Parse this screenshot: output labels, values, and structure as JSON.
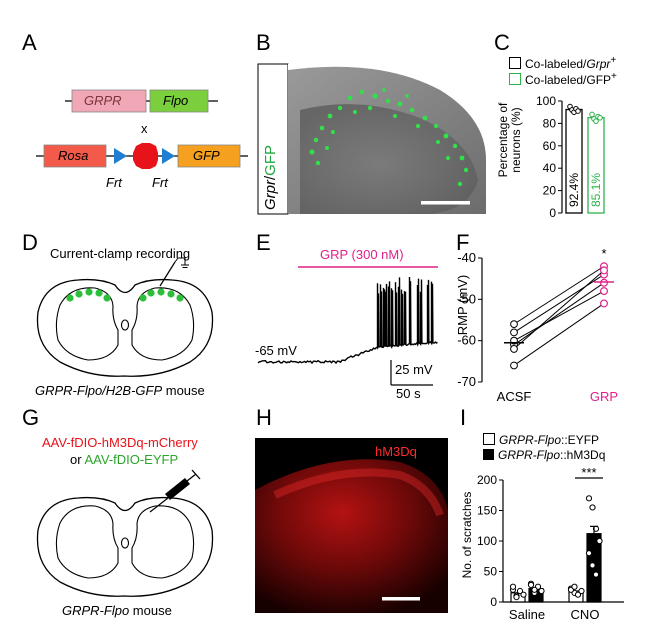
{
  "panels": {
    "A": {
      "label": "A",
      "box1a": "GRPR",
      "box1b": "Flpo",
      "cross": "x",
      "box2a": "Rosa",
      "box2b": "GFP",
      "frt1": "Frt",
      "frt2": "Frt",
      "colors": {
        "grpr_box": "#f2a7b6",
        "flpo_box": "#7ccf3c",
        "rosa_box": "#f45a4a",
        "gfp_box": "#f6a020",
        "frt": "#1f7fd0",
        "stop": "#e8121a"
      }
    },
    "B": {
      "label": "B",
      "side_label_a": "Grpr",
      "side_label_sep": "/",
      "side_label_b": "GFP",
      "colors": {
        "gfp_text": "#1ea83c",
        "gfp_dots": "#31e04a"
      }
    },
    "C": {
      "label": "C",
      "legend1_prefix": "Co-labeled/",
      "legend1_italic": "Grpr",
      "legend1_sup": "+",
      "legend2_prefix": "Co-labeled/GFP",
      "legend2_sup": "+",
      "ylabel_line1": "Percentage of",
      "ylabel_line2": "neurons (%)",
      "yticks": [
        "0",
        "20",
        "40",
        "60",
        "80",
        "100"
      ],
      "bar1_text": "92.4%",
      "bar2_text": "85.1%",
      "colors": {
        "bar1": "#000000",
        "bar2": "#2db34a"
      }
    },
    "D": {
      "label": "D",
      "recording": "Current-clamp recording",
      "caption_italic": "GRPR-Flpo/H2B-GFP",
      "caption_rest": " mouse",
      "colors": {
        "cells": "#2cbf3a"
      }
    },
    "E": {
      "label": "E",
      "drug": "GRP (300 nM)",
      "rest_v": "-65 mV",
      "scale_v": "25 mV",
      "scale_t": "50 s",
      "colors": {
        "drug": "#e0208c"
      }
    },
    "F": {
      "label": "F",
      "ylabel": "RMP (mV)",
      "yticks": [
        "-70",
        "-60",
        "-50",
        "-40"
      ],
      "xcats": [
        "ACSF",
        "GRP"
      ],
      "significance": "*",
      "colors": {
        "grp": "#e0208c"
      }
    },
    "G": {
      "label": "G",
      "virus1": "AAV-fDIO-hM3Dq-mCherry",
      "or_text": "or ",
      "virus2": "AAV-fDIO-EYFP",
      "caption_italic": "GRPR-Flpo",
      "caption_rest": " mouse",
      "colors": {
        "virus1": "#e8121a",
        "virus2": "#2aa52a"
      }
    },
    "H": {
      "label": "H",
      "tag": "hM3Dq",
      "colors": {
        "tag": "#ff2b2b"
      }
    },
    "I": {
      "label": "I",
      "legend1_italic": "GRPR-Flpo",
      "legend1_rest": "::EYFP",
      "legend2_italic": "GRPR-Flpo",
      "legend2_rest": "::hM3Dq",
      "ylabel": "No. of scratches",
      "yticks": [
        "0",
        "50",
        "100",
        "150",
        "200"
      ],
      "xcats": [
        "Saline",
        "CNO"
      ],
      "significance": "***"
    }
  },
  "chart_data": [
    {
      "type": "bar",
      "panel": "C",
      "categories": [
        "Co-labeled/Grpr+",
        "Co-labeled/GFP+"
      ],
      "values": [
        92.4,
        85.1
      ],
      "ylabel": "Percentage of neurons (%)",
      "ylim": [
        0,
        100
      ],
      "points": [
        [
          95,
          92,
          90,
          93,
          91
        ],
        [
          88,
          84,
          82,
          86,
          85
        ]
      ]
    },
    {
      "type": "scatter",
      "panel": "F",
      "categories": [
        "ACSF",
        "GRP"
      ],
      "ylabel": "RMP (mV)",
      "ylim": [
        -70,
        -40
      ],
      "pairs": [
        [
          -56,
          -42
        ],
        [
          -58,
          -44
        ],
        [
          -61,
          -46
        ],
        [
          -60,
          -48
        ],
        [
          -66,
          -51
        ],
        [
          -62,
          -43
        ]
      ],
      "means": [
        -60.5,
        -45.8
      ]
    },
    {
      "type": "bar",
      "panel": "I",
      "categories": [
        "Saline",
        "CNO"
      ],
      "series": [
        {
          "name": "GRPR-Flpo::EYFP",
          "values": [
            15,
            18
          ],
          "points": [
            [
              20,
              10,
              18,
              12,
              25,
              8
            ],
            [
              22,
              15,
              12,
              18,
              20,
              25
            ]
          ]
        },
        {
          "name": "GRPR-Flpo::hM3Dq",
          "values": [
            22,
            112
          ],
          "points": [
            [
              30,
              15,
              25,
              18,
              28,
              20
            ],
            [
              170,
              155,
              120,
              100,
              80,
              60,
              45
            ]
          ]
        }
      ],
      "ylabel": "No. of scratches",
      "ylim": [
        0,
        200
      ]
    }
  ]
}
